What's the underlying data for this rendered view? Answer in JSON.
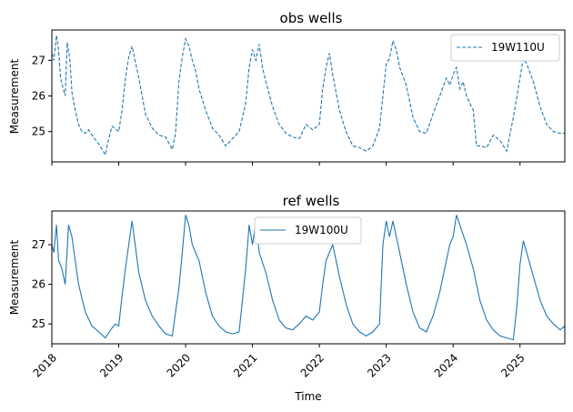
{
  "chart_data": [
    {
      "type": "line",
      "title": "obs wells",
      "xlabel": "",
      "ylabel": "Measurement",
      "xlim": [
        2018.0,
        2025.67
      ],
      "ylim": [
        24.15,
        27.85
      ],
      "yticks": [
        25,
        26,
        27
      ],
      "ytick_labels": [
        "25",
        "26",
        "27"
      ],
      "xtick_labels_visible": false,
      "legend_position": "top-right",
      "series": [
        {
          "name": "19W110U",
          "style": "dashed",
          "color": "#1f77b4",
          "x": [
            2018.0,
            2018.03,
            2018.07,
            2018.1,
            2018.13,
            2018.17,
            2018.2,
            2018.23,
            2018.27,
            2018.3,
            2018.35,
            2018.4,
            2018.45,
            2018.5,
            2018.55,
            2018.6,
            2018.7,
            2018.8,
            2018.85,
            2018.9,
            2019.0,
            2019.05,
            2019.1,
            2019.15,
            2019.2,
            2019.3,
            2019.4,
            2019.5,
            2019.6,
            2019.7,
            2019.8,
            2019.85,
            2019.9,
            2019.95,
            2020.0,
            2020.05,
            2020.1,
            2020.15,
            2020.2,
            2020.3,
            2020.4,
            2020.5,
            2020.6,
            2020.7,
            2020.8,
            2020.9,
            2020.95,
            2021.0,
            2021.05,
            2021.1,
            2021.15,
            2021.2,
            2021.3,
            2021.4,
            2021.5,
            2021.6,
            2021.7,
            2021.8,
            2021.9,
            2022.0,
            2022.05,
            2022.1,
            2022.15,
            2022.2,
            2022.3,
            2022.4,
            2022.5,
            2022.6,
            2022.7,
            2022.8,
            2022.9,
            2023.0,
            2023.05,
            2023.1,
            2023.15,
            2023.2,
            2023.3,
            2023.4,
            2023.5,
            2023.6,
            2023.7,
            2023.8,
            2023.9,
            2023.95,
            2024.0,
            2024.05,
            2024.1,
            2024.15,
            2024.2,
            2024.3,
            2024.35,
            2024.4,
            2024.5,
            2024.6,
            2024.7,
            2024.8,
            2024.9,
            2025.0,
            2025.05,
            2025.1,
            2025.2,
            2025.3,
            2025.4,
            2025.5,
            2025.6,
            2025.67
          ],
          "y": [
            27.2,
            27.0,
            27.7,
            27.3,
            26.5,
            26.2,
            26.0,
            27.5,
            27.0,
            26.1,
            25.6,
            25.2,
            25.0,
            24.95,
            25.05,
            24.9,
            24.65,
            24.35,
            24.8,
            25.15,
            25.0,
            25.6,
            26.5,
            27.1,
            27.4,
            26.5,
            25.5,
            25.1,
            24.9,
            24.85,
            24.5,
            24.95,
            26.4,
            27.1,
            27.6,
            27.4,
            27.0,
            26.7,
            26.2,
            25.6,
            25.1,
            24.9,
            24.6,
            24.8,
            25.0,
            25.8,
            26.8,
            27.3,
            27.0,
            27.45,
            26.8,
            26.4,
            25.7,
            25.2,
            24.95,
            24.85,
            24.8,
            25.2,
            25.05,
            25.2,
            26.2,
            26.8,
            27.2,
            26.6,
            25.6,
            25.0,
            24.6,
            24.55,
            24.45,
            24.6,
            25.1,
            26.9,
            27.05,
            27.55,
            27.3,
            26.8,
            26.3,
            25.4,
            25.0,
            24.95,
            25.5,
            26.0,
            26.5,
            26.3,
            26.6,
            26.8,
            26.2,
            26.4,
            26.0,
            25.6,
            24.6,
            24.6,
            24.55,
            24.9,
            24.75,
            24.45,
            25.4,
            26.5,
            27.05,
            26.9,
            26.4,
            25.7,
            25.2,
            25.0,
            24.95,
            24.95
          ]
        }
      ]
    },
    {
      "type": "line",
      "title": "ref wells",
      "xlabel": "Time",
      "ylabel": "Measurement",
      "xlim": [
        2018.0,
        2025.67
      ],
      "ylim": [
        24.5,
        27.85
      ],
      "yticks": [
        25,
        26,
        27
      ],
      "ytick_labels": [
        "25",
        "26",
        "27"
      ],
      "xticks": [
        2018,
        2019,
        2020,
        2021,
        2022,
        2023,
        2024,
        2025
      ],
      "xtick_labels": [
        "2018",
        "2019",
        "2020",
        "2021",
        "2022",
        "2023",
        "2024",
        "2025"
      ],
      "legend_position": "top-center",
      "series": [
        {
          "name": "19W100U",
          "style": "solid",
          "color": "#1f77b4",
          "x": [
            2018.0,
            2018.03,
            2018.07,
            2018.1,
            2018.15,
            2018.2,
            2018.25,
            2018.3,
            2018.35,
            2018.4,
            2018.5,
            2018.6,
            2018.7,
            2018.8,
            2018.9,
            2018.95,
            2019.0,
            2019.05,
            2019.1,
            2019.2,
            2019.3,
            2019.4,
            2019.5,
            2019.6,
            2019.7,
            2019.8,
            2019.9,
            2019.95,
            2020.0,
            2020.05,
            2020.1,
            2020.2,
            2020.3,
            2020.4,
            2020.5,
            2020.6,
            2020.7,
            2020.8,
            2020.9,
            2020.95,
            2021.0,
            2021.05,
            2021.1,
            2021.2,
            2021.3,
            2021.4,
            2021.5,
            2021.6,
            2021.7,
            2021.8,
            2021.9,
            2022.0,
            2022.05,
            2022.1,
            2022.2,
            2022.3,
            2022.4,
            2022.5,
            2022.6,
            2022.7,
            2022.8,
            2022.9,
            2022.95,
            2023.0,
            2023.05,
            2023.1,
            2023.2,
            2023.3,
            2023.4,
            2023.5,
            2023.6,
            2023.7,
            2023.8,
            2023.9,
            2023.95,
            2024.0,
            2024.05,
            2024.1,
            2024.2,
            2024.3,
            2024.4,
            2024.5,
            2024.6,
            2024.7,
            2024.8,
            2024.9,
            2024.95,
            2025.0,
            2025.05,
            2025.1,
            2025.2,
            2025.3,
            2025.4,
            2025.5,
            2025.6,
            2025.67
          ],
          "y": [
            27.0,
            26.8,
            27.5,
            26.6,
            26.4,
            26.0,
            27.5,
            27.2,
            26.6,
            26.0,
            25.3,
            24.95,
            24.8,
            24.65,
            24.9,
            25.0,
            24.95,
            25.7,
            26.4,
            27.6,
            26.3,
            25.6,
            25.2,
            24.95,
            24.75,
            24.7,
            25.9,
            26.8,
            27.75,
            27.5,
            27.0,
            26.6,
            25.8,
            25.2,
            24.95,
            24.8,
            24.75,
            24.8,
            26.4,
            27.5,
            27.0,
            27.6,
            26.8,
            26.3,
            25.6,
            25.1,
            24.9,
            24.85,
            25.0,
            25.2,
            25.1,
            25.3,
            26.0,
            26.6,
            27.0,
            26.2,
            25.5,
            25.0,
            24.8,
            24.7,
            24.8,
            25.0,
            27.0,
            27.6,
            27.2,
            27.6,
            26.8,
            26.0,
            25.3,
            24.9,
            24.8,
            25.2,
            25.8,
            26.6,
            27.0,
            27.2,
            27.75,
            27.5,
            27.0,
            26.4,
            25.6,
            25.1,
            24.85,
            24.7,
            24.65,
            24.6,
            25.4,
            26.5,
            27.1,
            26.8,
            26.2,
            25.6,
            25.2,
            25.0,
            24.85,
            24.95
          ]
        }
      ]
    }
  ]
}
